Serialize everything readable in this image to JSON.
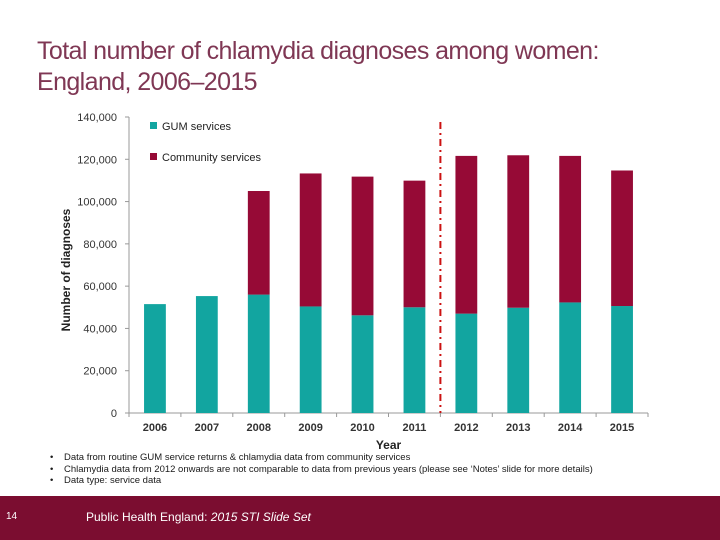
{
  "slide": {
    "title_line1": "Total number of chlamydia diagnoses among women:",
    "title_line2": "England, 2006–2015",
    "notes": [
      "Data from routine GUM service returns & chlamydia data from community services",
      "Chlamydia data from 2012 onwards are not comparable to data from previous years (please see ‘Notes’ slide for more details)",
      "Data type: service data"
    ],
    "slide_number": "14",
    "footer_org": "Public Health England:",
    "footer_title": "2015 STI Slide Set"
  },
  "colors": {
    "gum": "#12a5a0",
    "community": "#960a36",
    "title": "#7f3754",
    "footer": "#7b0d30",
    "divider": "#cc1111"
  },
  "chart_data": {
    "type": "bar",
    "stacked": true,
    "categories": [
      "2006",
      "2007",
      "2008",
      "2009",
      "2010",
      "2011",
      "2012",
      "2013",
      "2014",
      "2015"
    ],
    "series": [
      {
        "name": "GUM services",
        "color": "#12a5a0",
        "values": [
          51500,
          55300,
          56000,
          50400,
          46200,
          50000,
          47000,
          49800,
          52300,
          50600
        ]
      },
      {
        "name": "Community services",
        "color": "#960a36",
        "values": [
          0,
          0,
          49000,
          62900,
          65600,
          59900,
          74600,
          72100,
          69300,
          64100
        ]
      }
    ],
    "xlabel": "Year",
    "ylabel": "Number of diagnoses",
    "ylim": [
      0,
      140000
    ],
    "yticks": [
      0,
      20000,
      40000,
      60000,
      80000,
      100000,
      120000,
      140000
    ],
    "ytick_labels": [
      "0",
      "20,000",
      "40,000",
      "60,000",
      "80,000",
      "100,000",
      "120,000",
      "140,000"
    ],
    "legend_position": "top-left",
    "divider_between": [
      "2011",
      "2012"
    ],
    "grid": false
  }
}
